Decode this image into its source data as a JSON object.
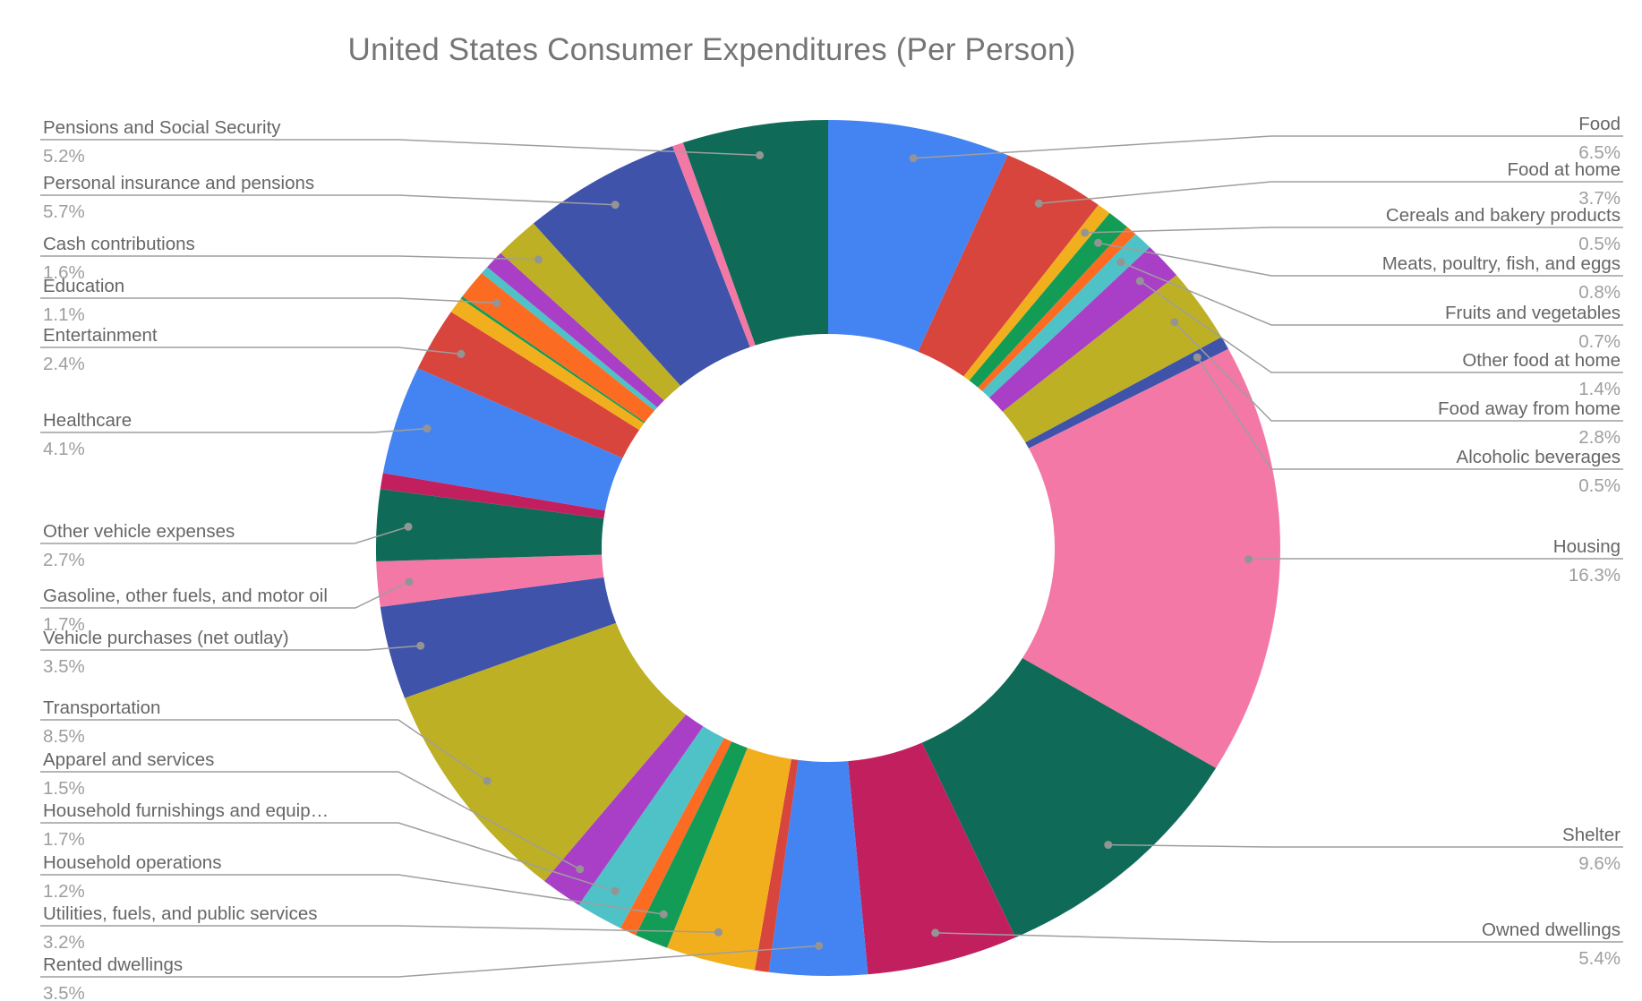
{
  "title": "United States Consumer Expenditures (Per Person)",
  "colors": {
    "background": "#ffffff",
    "title_text": "#757575",
    "label_name_text": "#666666",
    "label_pct_text": "#9e9e9e",
    "leader_line": "#9e9e9e"
  },
  "chart_data": {
    "type": "pie",
    "subtype": "donut",
    "title": "United States Consumer Expenditures (Per Person)",
    "unit": "%",
    "legend_position": "none",
    "labels_style": "callout lines with name above rule and percent below",
    "slices": [
      {
        "label": "Food",
        "value": 6.5,
        "color": "#4484F2"
      },
      {
        "label": "Food at home",
        "value": 3.7,
        "color": "#D8453C"
      },
      {
        "label": "Cereals and bakery products",
        "value": 0.5,
        "color": "#F2AF1D"
      },
      {
        "label": "Meats, poultry, fish, and eggs",
        "value": 0.8,
        "color": "#129C56"
      },
      {
        "label": "",
        "value": 0.4,
        "color": "#FB6C22"
      },
      {
        "label": "Fruits and vegetables",
        "value": 0.7,
        "color": "#4FC2C7"
      },
      {
        "label": "Other food at home",
        "value": 1.4,
        "color": "#A93FC6"
      },
      {
        "label": "Food away from home",
        "value": 2.8,
        "color": "#BEB024"
      },
      {
        "label": "Alcoholic beverages",
        "value": 0.5,
        "color": "#3E53A9"
      },
      {
        "label": "Housing",
        "value": 16.3,
        "color": "#F478A6"
      },
      {
        "label": "Shelter",
        "value": 9.6,
        "color": "#0F6B58"
      },
      {
        "label": "Owned dwellings",
        "value": 5.4,
        "color": "#C21F5E"
      },
      {
        "label": "Rented dwellings",
        "value": 3.5,
        "color": "#4484F2"
      },
      {
        "label": "",
        "value": 0.5,
        "color": "#D8453C"
      },
      {
        "label": "Utilities, fuels, and public services",
        "value": 3.2,
        "color": "#F2AF1D"
      },
      {
        "label": "Household operations",
        "value": 1.2,
        "color": "#129C56"
      },
      {
        "label": "",
        "value": 0.6,
        "color": "#FB6C22"
      },
      {
        "label": "Household furnishings and equip…",
        "value": 1.7,
        "color": "#4FC2C7"
      },
      {
        "label": "Apparel and services",
        "value": 1.5,
        "color": "#A93FC6"
      },
      {
        "label": "Transportation",
        "value": 8.5,
        "color": "#BEB024"
      },
      {
        "label": "Vehicle purchases (net outlay)",
        "value": 3.5,
        "color": "#3E53A9"
      },
      {
        "label": "Gasoline, other fuels, and motor oil",
        "value": 1.7,
        "color": "#F478A6"
      },
      {
        "label": "Other vehicle expenses",
        "value": 2.7,
        "color": "#0F6B58"
      },
      {
        "label": "",
        "value": 0.6,
        "color": "#C21F5E"
      },
      {
        "label": "Healthcare",
        "value": 4.1,
        "color": "#4484F2"
      },
      {
        "label": "Entertainment",
        "value": 2.4,
        "color": "#D8453C"
      },
      {
        "label": "",
        "value": 0.6,
        "color": "#F2AF1D"
      },
      {
        "label": "",
        "value": 0.1,
        "color": "#129C56"
      },
      {
        "label": "Education",
        "value": 1.1,
        "color": "#FB6C22"
      },
      {
        "label": "",
        "value": 0.3,
        "color": "#4FC2C7"
      },
      {
        "label": "",
        "value": 0.7,
        "color": "#A93FC6"
      },
      {
        "label": "Cash contributions",
        "value": 1.6,
        "color": "#BEB024"
      },
      {
        "label": "Personal insurance and pensions",
        "value": 5.7,
        "color": "#3E53A9"
      },
      {
        "label": "",
        "value": 0.4,
        "color": "#F478A6"
      },
      {
        "label": "Pensions and Social Security",
        "value": 5.2,
        "color": "#0F6B58"
      }
    ]
  }
}
